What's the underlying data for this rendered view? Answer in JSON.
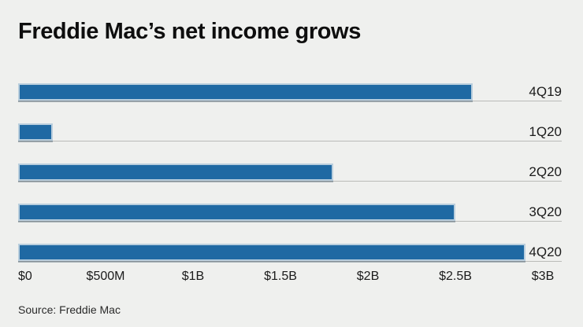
{
  "chart_data": {
    "type": "bar",
    "orientation": "horizontal",
    "title": "Freddie Mac’s net income grows",
    "categories": [
      "4Q19",
      "1Q20",
      "2Q20",
      "3Q20",
      "4Q20"
    ],
    "values": [
      2.6,
      0.2,
      1.8,
      2.5,
      2.9
    ],
    "values_unit": "USD billions",
    "xlim": [
      0,
      3
    ],
    "tick_values": [
      0,
      0.5,
      1,
      1.5,
      2,
      2.5,
      3
    ],
    "tick_labels": [
      "$0",
      "$500M",
      "$1B",
      "$1.5B",
      "$2B",
      "$2.5B",
      "$3B"
    ],
    "source": "Source: Freddie Mac",
    "legend": "none",
    "grid": "baseline-under-each-bar",
    "colors": {
      "bar_fill": "#1f69a3",
      "bar_outline": "#b9cedd",
      "background": "#eff0ee",
      "gridline": "#babbb8",
      "title_text": "#0e0e0e",
      "label_text": "#1b1b1b"
    }
  }
}
